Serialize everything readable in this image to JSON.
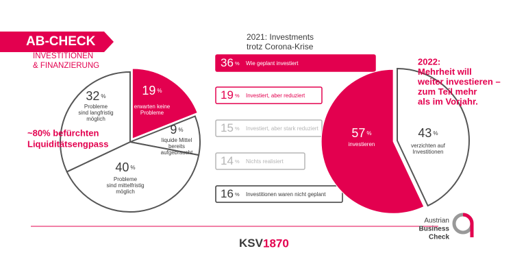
{
  "header": {
    "title": "AB-CHECK",
    "subtitle": [
      "INVESTITIONEN",
      "& FINANZIERUNG"
    ]
  },
  "chart_data": [
    {
      "type": "pie",
      "values": [
        19,
        9,
        40,
        32
      ],
      "value_suffix": "%",
      "labels": [
        [
          "erwarten keine",
          "Probleme"
        ],
        [
          "liquide Mittel",
          "bereits",
          "aufgebraucht"
        ],
        [
          "Probleme",
          "sind mittelfristig",
          "möglich"
        ],
        [
          "Probleme",
          "sind langfristig",
          "möglich"
        ]
      ],
      "colors": [
        "#e3004f",
        "#ffffff",
        "#ffffff",
        "#ffffff"
      ],
      "annotation": [
        "~80% befürchten",
        "Liquiditätsengpass"
      ]
    },
    {
      "type": "bar",
      "title": [
        "2021: Investments",
        "trotz Corona-Krise"
      ],
      "categories": [
        "Wie geplant investiert",
        "Investiert, aber reduziert",
        "Investiert, aber stark reduziert",
        "Nichts realisiert",
        "Investitionen waren nicht geplant"
      ],
      "values": [
        36,
        19,
        15,
        14,
        16
      ],
      "value_suffix": "%",
      "colors": [
        "#e3004f",
        "#e3004f",
        "#b5b5b5",
        "#b5b5b5",
        "#3a3a3a"
      ]
    },
    {
      "type": "pie",
      "values": [
        57,
        43
      ],
      "value_suffix": "%",
      "labels": [
        [
          "investieren"
        ],
        [
          "verzichten auf",
          "Investitionen"
        ]
      ],
      "colors": [
        "#e3004f",
        "#ffffff"
      ],
      "annotation": [
        "2022:",
        "Mehrheit will",
        "weiter investieren –",
        "zum Teil mehr",
        "als im Vorjahr."
      ]
    }
  ],
  "footer": {
    "brand_a": "KSV",
    "brand_b": "1870",
    "badge": [
      "Austrian",
      "Business",
      "Check"
    ]
  }
}
